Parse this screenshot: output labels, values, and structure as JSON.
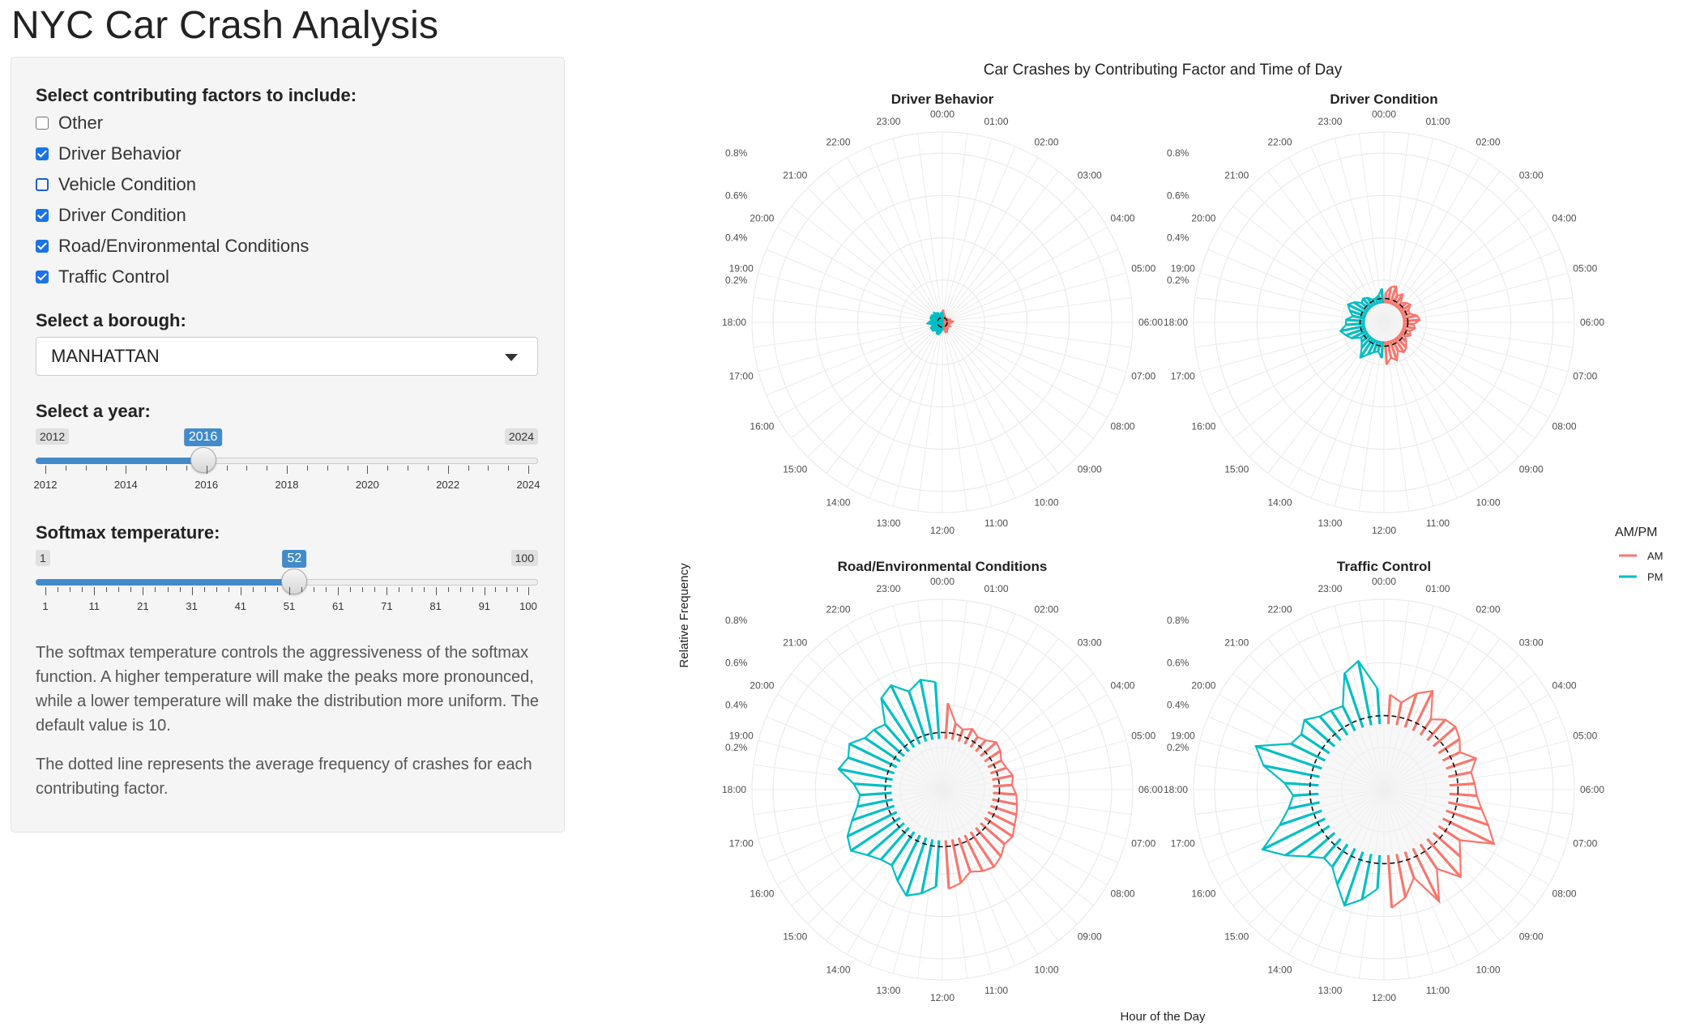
{
  "app": {
    "title": "NYC Car Crash Analysis"
  },
  "sidebar": {
    "factors_label": "Select contributing factors to include:",
    "factors": [
      {
        "label": "Other",
        "checked": false
      },
      {
        "label": "Driver Behavior",
        "checked": true
      },
      {
        "label": "Vehicle Condition",
        "checked": false
      },
      {
        "label": "Driver Condition",
        "checked": true
      },
      {
        "label": "Road/Environmental Conditions",
        "checked": true
      },
      {
        "label": "Traffic Control",
        "checked": true
      }
    ],
    "borough_label": "Select a borough:",
    "borough_value": "MANHATTAN",
    "year_label": "Select a year:",
    "year": {
      "min": 2012,
      "max": 2024,
      "value": 2016,
      "min_label": "2012",
      "max_label": "2024",
      "value_label": "2016",
      "ticks": [
        "2012",
        "2014",
        "2016",
        "2018",
        "2020",
        "2022",
        "2024"
      ]
    },
    "temp_label": "Softmax temperature:",
    "temp": {
      "min": 1,
      "max": 100,
      "value": 52,
      "min_label": "1",
      "max_label": "100",
      "value_label": "52",
      "ticks": [
        "1",
        "11",
        "21",
        "31",
        "41",
        "51",
        "61",
        "71",
        "81",
        "91",
        "100"
      ]
    },
    "desc1": "The softmax temperature controls the aggressiveness of the softmax function. A higher temperature will make the peaks more pronounced, while a lower temperature will make the distribution more uniform. The default value is 10.",
    "desc2": "The dotted line represents the average frequency of crashes for each contributing factor."
  },
  "colors": {
    "am": "#F8766D",
    "pm": "#00BFC4",
    "accent": "#428bca"
  },
  "chart_data": {
    "type": "polar-bar",
    "title": "Car Crashes by Contributing Factor and Time of Day",
    "xlabel": "Hour of the Day",
    "ylabel": "Relative Frequency",
    "ylim": [
      0,
      0.9
    ],
    "radial_ticks": [
      "0.2%",
      "0.4%",
      "0.6%",
      "0.8%"
    ],
    "hour_labels": [
      "00:00",
      "01:00",
      "02:00",
      "03:00",
      "04:00",
      "05:00",
      "06:00",
      "07:00",
      "08:00",
      "09:00",
      "10:00",
      "11:00",
      "12:00",
      "13:00",
      "14:00",
      "15:00",
      "16:00",
      "17:00",
      "18:00",
      "19:00",
      "20:00",
      "21:00",
      "22:00",
      "23:00"
    ],
    "legend": {
      "title": "AM/PM",
      "entries": [
        "AM",
        "PM"
      ],
      "position": "right"
    },
    "panels": [
      {
        "title": "Driver Behavior",
        "mean": 0.02,
        "base": 0.0,
        "am": [
          0.06,
          0.04,
          0.03,
          0.03,
          0.02,
          0.02,
          0.02,
          0.03,
          0.03,
          0.04,
          0.04,
          0.05,
          0.04,
          0.03,
          0.03,
          0.04,
          0.03,
          0.03,
          0.04,
          0.04,
          0.05,
          0.05,
          0.03,
          0.04
        ],
        "pm": [
          0.04,
          0.05,
          0.06,
          0.06,
          0.05,
          0.05,
          0.06,
          0.06,
          0.06,
          0.05,
          0.05,
          0.07,
          0.06,
          0.05,
          0.06,
          0.06,
          0.06,
          0.05,
          0.06,
          0.05,
          0.05,
          0.04,
          0.04,
          0.05
        ]
      },
      {
        "title": "Driver Condition",
        "mean": 0.1,
        "base": 0.09,
        "am": [
          0.14,
          0.17,
          0.18,
          0.14,
          0.16,
          0.12,
          0.14,
          0.15,
          0.13,
          0.13,
          0.16,
          0.17,
          0.14,
          0.15,
          0.13,
          0.14,
          0.12,
          0.14,
          0.16,
          0.17,
          0.15,
          0.19,
          0.17,
          0.2
        ],
        "pm": [
          0.17,
          0.14,
          0.15,
          0.17,
          0.2,
          0.16,
          0.14,
          0.13,
          0.17,
          0.19,
          0.21,
          0.18,
          0.18,
          0.15,
          0.17,
          0.19,
          0.17,
          0.14,
          0.15,
          0.14,
          0.12,
          0.12,
          0.13,
          0.16
        ]
      },
      {
        "title": "Road/Environmental Conditions",
        "mean": 0.27,
        "base": 0.24,
        "am": [
          0.41,
          0.32,
          0.3,
          0.32,
          0.3,
          0.31,
          0.34,
          0.33,
          0.31,
          0.32,
          0.34,
          0.33,
          0.35,
          0.36,
          0.37,
          0.38,
          0.4,
          0.39,
          0.42,
          0.44,
          0.43,
          0.41,
          0.45,
          0.47
        ],
        "pm": [
          0.46,
          0.5,
          0.53,
          0.48,
          0.43,
          0.44,
          0.47,
          0.52,
          0.5,
          0.45,
          0.41,
          0.39,
          0.42,
          0.5,
          0.47,
          0.49,
          0.44,
          0.43,
          0.41,
          0.52,
          0.55,
          0.49,
          0.53,
          0.51
        ]
      },
      {
        "title": "Traffic Control",
        "mean": 0.35,
        "base": 0.31,
        "am": [
          0.45,
          0.42,
          0.48,
          0.52,
          0.4,
          0.44,
          0.45,
          0.43,
          0.4,
          0.46,
          0.42,
          0.43,
          0.44,
          0.47,
          0.52,
          0.58,
          0.43,
          0.48,
          0.55,
          0.45,
          0.59,
          0.44,
          0.52,
          0.56
        ],
        "pm": [
          0.47,
          0.53,
          0.58,
          0.5,
          0.44,
          0.43,
          0.48,
          0.56,
          0.64,
          0.52,
          0.46,
          0.43,
          0.47,
          0.58,
          0.64,
          0.49,
          0.47,
          0.5,
          0.46,
          0.45,
          0.44,
          0.58,
          0.62,
          0.48
        ]
      }
    ]
  }
}
